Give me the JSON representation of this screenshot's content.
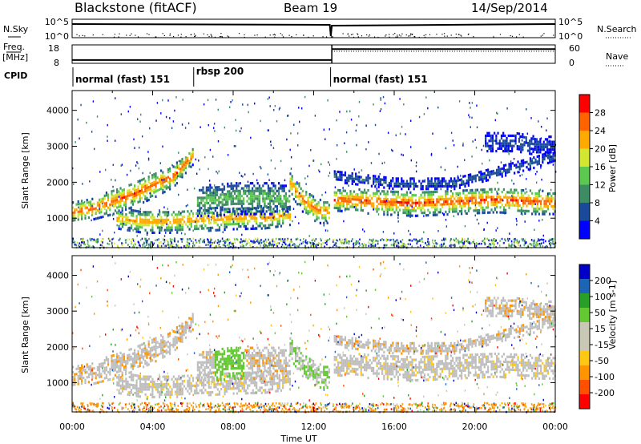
{
  "header": {
    "station": "Blackstone (fitACF)",
    "beam": "Beam 19",
    "date": "14/Sep/2014"
  },
  "colors": {
    "power_scale": [
      "#0000ff",
      "#1a4a9a",
      "#3c8c64",
      "#5cc850",
      "#d2e632",
      "#ffaa00",
      "#ff6400",
      "#ff0000"
    ],
    "velocity_scale": [
      "#ff0000",
      "#ff5000",
      "#ff9600",
      "#ffc814",
      "#c8c8b4",
      "#c8c8b4",
      "#64c832",
      "#28a028",
      "#1e64b4",
      "#0000c8"
    ],
    "ground_scatter": "#bebebe"
  },
  "top_panels": {
    "nsky_label": "N.Sky",
    "nsky_ticks": [
      "10^5",
      "10^0"
    ],
    "nsearch_label": "N.Search",
    "nsearch_ticks": [
      "10^5",
      "10^0"
    ],
    "freq_label": "Freq.",
    "freq_unit": "[MHz]",
    "freq_ticks": [
      "18",
      "8"
    ],
    "nave_label": "Nave",
    "nave_ticks": [
      "60",
      "0"
    ],
    "cpid_label": "CPID",
    "modes": [
      {
        "label": "normal (fast) 151",
        "start_hour": 0,
        "end_hour": 6
      },
      {
        "label": "rbsp 200",
        "start_hour": 6,
        "end_hour": 12.8
      },
      {
        "label": "normal (fast) 151",
        "start_hour": 12.8,
        "end_hour": 24
      }
    ],
    "freq_segments": [
      {
        "start_hour": 0,
        "end_hour": 12.9,
        "freq_mhz": 9.8
      },
      {
        "start_hour": 12.9,
        "end_hour": 24,
        "freq_mhz": 15.7
      }
    ]
  },
  "chart_data": [
    {
      "type": "heatmap",
      "quantity": "power",
      "ylabel": "Slant Range [km]",
      "ylim": [
        180,
        4550
      ],
      "yticks": [
        1000,
        2000,
        3000,
        4000
      ],
      "xlim_hours": [
        0,
        24
      ],
      "colorbar_label": "Power [dB]",
      "colorbar_ticks": [
        "4",
        "8",
        "12",
        "16",
        "20",
        "24",
        "28"
      ],
      "colorbar_range": [
        0,
        32
      ],
      "bands": [
        {
          "x": [
            0.0,
            1.0,
            2.0,
            3.0,
            4.0,
            5.0,
            6.0
          ],
          "y": [
            1200,
            1300,
            1500,
            1700,
            1950,
            2200,
            2800
          ],
          "width_km": [
            300,
            300,
            350,
            350,
            350,
            300,
            250
          ],
          "peak_db": 27
        },
        {
          "x": [
            2.2,
            3.5,
            5.0,
            6.5,
            8.0,
            9.5,
            10.8
          ],
          "y": [
            1000,
            950,
            950,
            1000,
            1050,
            1050,
            1100
          ],
          "width_km": [
            250,
            320,
            320,
            320,
            320,
            300,
            250
          ],
          "peak_db": 24
        },
        {
          "x": [
            6.2,
            7.0,
            8.0,
            9.0,
            10.0,
            10.8
          ],
          "y": [
            1500,
            1550,
            1600,
            1600,
            1600,
            1550
          ],
          "width_km": [
            400,
            450,
            450,
            450,
            450,
            400
          ],
          "peak_db": 14
        },
        {
          "x": [
            10.8,
            11.5,
            12.2,
            12.8
          ],
          "y": [
            2000,
            1500,
            1250,
            1200
          ],
          "width_km": [
            300,
            350,
            350,
            300
          ],
          "peak_db": 26
        },
        {
          "x": [
            13.0,
            15.0,
            17.0,
            19.0,
            21.0,
            23.0,
            24.0
          ],
          "y": [
            1550,
            1500,
            1450,
            1500,
            1550,
            1500,
            1450
          ],
          "width_km": [
            300,
            350,
            350,
            350,
            350,
            350,
            300
          ],
          "peak_db": 28
        },
        {
          "x": [
            13.0,
            16.0,
            19.0,
            21.0,
            23.0,
            24.0
          ],
          "y": [
            2200,
            2000,
            2000,
            2300,
            2600,
            2800
          ],
          "width_km": [
            150,
            150,
            150,
            150,
            150,
            150
          ],
          "peak_db": 7
        },
        {
          "x": [
            20.5,
            22.0,
            23.0,
            24.0
          ],
          "y": [
            3150,
            3150,
            3050,
            3050
          ],
          "width_km": [
            250,
            250,
            250,
            250
          ],
          "peak_db": 6
        }
      ]
    },
    {
      "type": "heatmap",
      "quantity": "velocity",
      "ylabel": "Slant Range [km]",
      "ylim": [
        180,
        4550
      ],
      "yticks": [
        1000,
        2000,
        3000,
        4000
      ],
      "xlim_hours": [
        0,
        24
      ],
      "xticks": [
        "00:00",
        "04:00",
        "08:00",
        "12:00",
        "16:00",
        "20:00",
        "00:00"
      ],
      "xlabel": "Time UT",
      "colorbar_label": "Velocity [m s-1]",
      "colorbar_ticks": [
        "200",
        "100",
        "50",
        "15",
        "-15",
        "-50",
        "-100",
        "-200"
      ],
      "colorbar_range": [
        -250,
        250
      ]
    }
  ]
}
